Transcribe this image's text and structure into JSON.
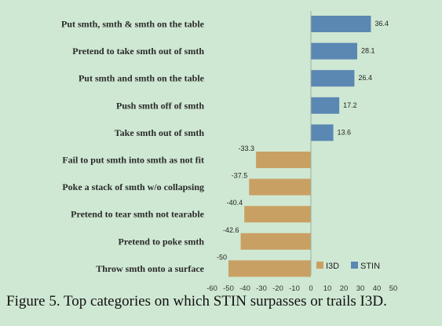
{
  "caption": "Figure 5. Top categories on which STIN surpasses or trails I3D.",
  "chart_data": {
    "type": "bar",
    "orientation": "horizontal",
    "categories": [
      "Put smth, smth & smth on the table",
      "Pretend to take smth out of smth",
      "Put smth and smth on the table",
      "Push smth off of smth",
      "Take smth out of smth",
      "Fail to put smth into smth as not fit",
      "Poke a stack of smth w/o collapsing",
      "Pretend to tear smth not tearable",
      "Pretend to poke smth",
      "Throw smth onto a surface"
    ],
    "values": [
      36.4,
      28.1,
      26.4,
      17.2,
      13.6,
      -33.3,
      -37.5,
      -40.4,
      -42.6,
      -50
    ],
    "value_labels": [
      "36.4",
      "28.1",
      "26.4",
      "17.2",
      "13.6",
      "-33.3",
      "-37.5",
      "-40.4",
      "-42.6",
      "-50"
    ],
    "series": [
      {
        "name": "I3D",
        "color": "#c9a063"
      },
      {
        "name": "STIN",
        "color": "#5b87b3"
      }
    ],
    "xlim": [
      -60,
      50
    ],
    "xticks": [
      -60,
      -50,
      -40,
      -30,
      -20,
      -10,
      0,
      10,
      20,
      30,
      40,
      50
    ],
    "xtick_labels": [
      "-60",
      "-50",
      "-40",
      "-30",
      "-20",
      "-10",
      "0",
      "10",
      "20",
      "30",
      "40",
      "50"
    ],
    "legend": "bottom-right",
    "grid": false
  }
}
